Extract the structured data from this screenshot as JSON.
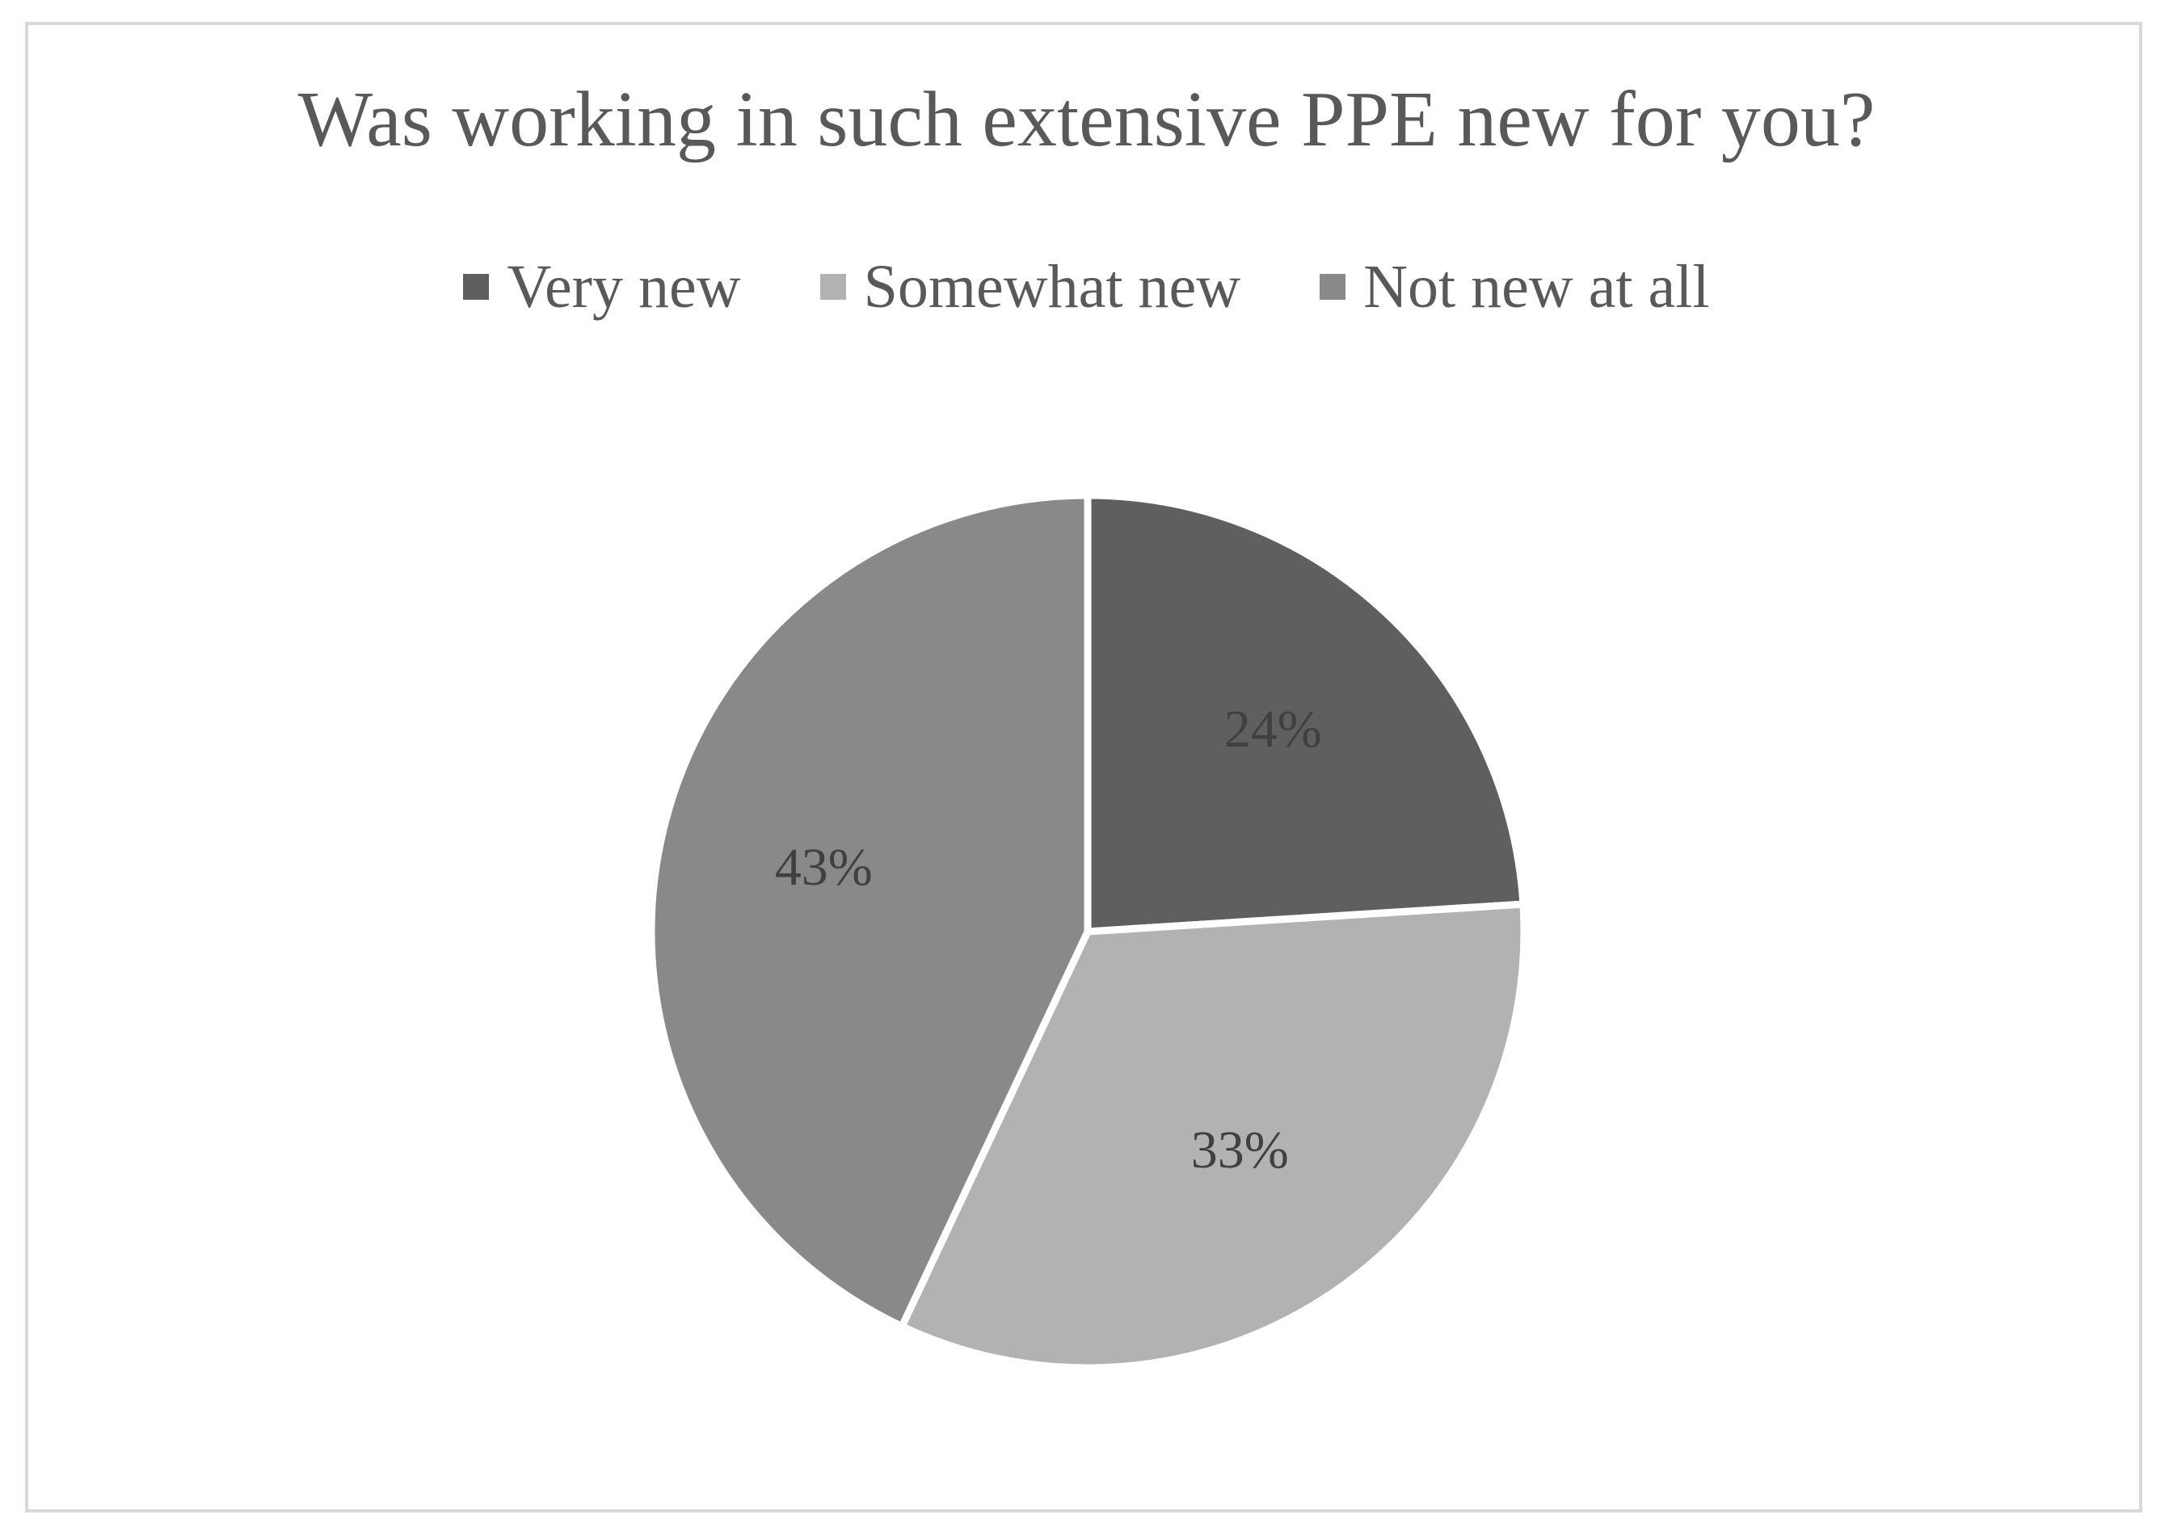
{
  "chart_data": {
    "type": "pie",
    "title": "Was working in such extensive PPE new for you?",
    "legend_position": "top",
    "slices": [
      {
        "label": "Very new",
        "value": 24,
        "data_label": "24%",
        "color": "#5f5f5f"
      },
      {
        "label": "Somewhat new",
        "value": 33,
        "data_label": "33%",
        "color": "#b2b2b2"
      },
      {
        "label": "Not new at all",
        "value": 43,
        "data_label": "43%",
        "color": "#898989"
      }
    ]
  }
}
